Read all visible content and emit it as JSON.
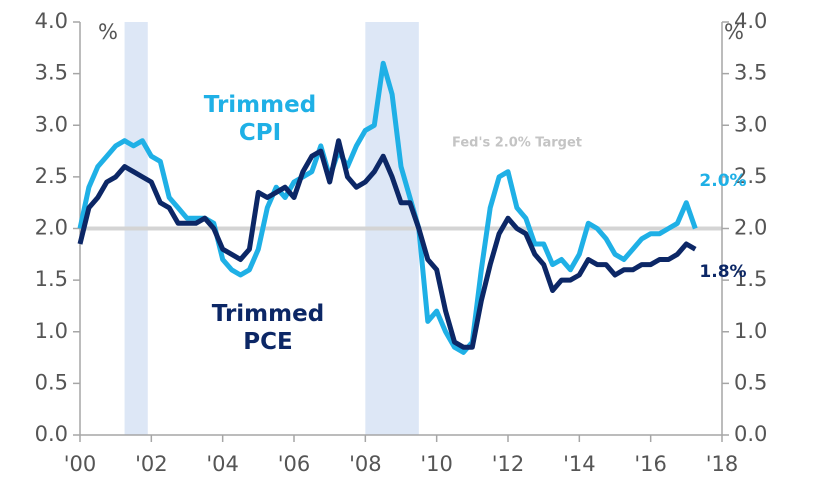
{
  "chart_data": {
    "type": "line",
    "x": [
      2000,
      2000.25,
      2000.5,
      2000.75,
      2001,
      2001.25,
      2001.5,
      2001.75,
      2002,
      2002.25,
      2002.5,
      2002.75,
      2003,
      2003.25,
      2003.5,
      2003.75,
      2004,
      2004.25,
      2004.5,
      2004.75,
      2005,
      2005.25,
      2005.5,
      2005.75,
      2006,
      2006.25,
      2006.5,
      2006.75,
      2007,
      2007.25,
      2007.5,
      2007.75,
      2008,
      2008.25,
      2008.5,
      2008.75,
      2009,
      2009.25,
      2009.5,
      2009.75,
      2010,
      2010.25,
      2010.5,
      2010.75,
      2011,
      2011.25,
      2011.5,
      2011.75,
      2012,
      2012.25,
      2012.5,
      2012.75,
      2013,
      2013.25,
      2013.5,
      2013.75,
      2014,
      2014.25,
      2014.5,
      2014.75,
      2015,
      2015.25,
      2015.5,
      2015.75,
      2016,
      2016.25,
      2016.5,
      2016.75,
      2017,
      2017.25
    ],
    "series": [
      {
        "name": "Trimmed CPI",
        "color": "#1fb0e6",
        "end_label": "2.0%",
        "values": [
          2.0,
          2.4,
          2.6,
          2.7,
          2.8,
          2.85,
          2.8,
          2.85,
          2.7,
          2.65,
          2.3,
          2.2,
          2.1,
          2.1,
          2.1,
          2.05,
          1.7,
          1.6,
          1.55,
          1.6,
          1.8,
          2.2,
          2.4,
          2.3,
          2.45,
          2.5,
          2.55,
          2.8,
          2.5,
          2.75,
          2.6,
          2.8,
          2.95,
          3.0,
          3.6,
          3.3,
          2.6,
          2.3,
          2.0,
          1.1,
          1.2,
          1.0,
          0.85,
          0.8,
          0.9,
          1.6,
          2.2,
          2.5,
          2.55,
          2.2,
          2.1,
          1.85,
          1.85,
          1.65,
          1.7,
          1.6,
          1.75,
          2.05,
          2.0,
          1.9,
          1.75,
          1.7,
          1.8,
          1.9,
          1.95,
          1.95,
          2.0,
          2.05,
          2.25,
          2.0
        ]
      },
      {
        "name": "Trimmed PCE",
        "color": "#0c2766",
        "end_label": "1.8%",
        "values": [
          1.85,
          2.2,
          2.3,
          2.45,
          2.5,
          2.6,
          2.55,
          2.5,
          2.45,
          2.25,
          2.2,
          2.05,
          2.05,
          2.05,
          2.1,
          2.0,
          1.8,
          1.75,
          1.7,
          1.8,
          2.35,
          2.3,
          2.35,
          2.4,
          2.3,
          2.55,
          2.7,
          2.75,
          2.45,
          2.85,
          2.5,
          2.4,
          2.45,
          2.55,
          2.7,
          2.5,
          2.25,
          2.25,
          2.0,
          1.7,
          1.6,
          1.2,
          0.9,
          0.85,
          0.85,
          1.3,
          1.65,
          1.95,
          2.1,
          2.0,
          1.95,
          1.75,
          1.65,
          1.4,
          1.5,
          1.5,
          1.55,
          1.7,
          1.65,
          1.65,
          1.55,
          1.6,
          1.6,
          1.65,
          1.65,
          1.7,
          1.7,
          1.75,
          1.85,
          1.8
        ]
      }
    ],
    "shaded_periods": [
      [
        2001.25,
        2001.9
      ],
      [
        2008.0,
        2009.5
      ]
    ],
    "shade_color": "#dde7f6",
    "target": {
      "value": 2.0,
      "label": "Fed's 2.0% Target"
    },
    "y_label": "%",
    "y2_label": "%",
    "xlim": [
      2000,
      2018
    ],
    "xticks": [
      {
        "value": 2000,
        "label": "'00"
      },
      {
        "value": 2002,
        "label": "'02"
      },
      {
        "value": 2004,
        "label": "'04"
      },
      {
        "value": 2006,
        "label": "'06"
      },
      {
        "value": 2008,
        "label": "'08"
      },
      {
        "value": 2010,
        "label": "'10"
      },
      {
        "value": 2012,
        "label": "'12"
      },
      {
        "value": 2014,
        "label": "'14"
      },
      {
        "value": 2016,
        "label": "'16"
      },
      {
        "value": 2018,
        "label": "'18"
      }
    ],
    "ylim": [
      0,
      4
    ],
    "yticks": [
      {
        "value": 0,
        "label": "0.0"
      },
      {
        "value": 0.5,
        "label": "0.5"
      },
      {
        "value": 1,
        "label": "1.0"
      },
      {
        "value": 1.5,
        "label": "1.5"
      },
      {
        "value": 2,
        "label": "2.0"
      },
      {
        "value": 2.5,
        "label": "2.5"
      },
      {
        "value": 3,
        "label": "3.0"
      },
      {
        "value": 3.5,
        "label": "3.5"
      },
      {
        "value": 4,
        "label": "4.0"
      }
    ],
    "y2lim": [
      0,
      4
    ],
    "y2ticks": [
      {
        "value": 0,
        "label": "0.0"
      },
      {
        "value": 0.5,
        "label": "0.5"
      },
      {
        "value": 1,
        "label": "1.0"
      },
      {
        "value": 1.5,
        "label": "1.5"
      },
      {
        "value": 2,
        "label": "2.0"
      },
      {
        "value": 2.5,
        "label": "2.5"
      },
      {
        "value": 3,
        "label": "3.0"
      },
      {
        "value": 3.5,
        "label": "3.5"
      },
      {
        "value": 4,
        "label": "4.0"
      }
    ]
  }
}
